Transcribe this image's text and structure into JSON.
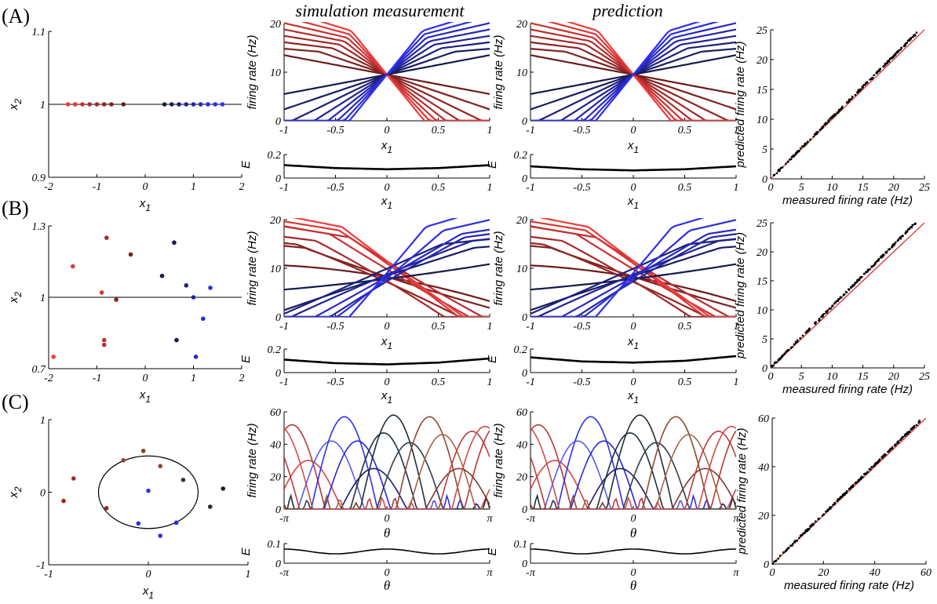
{
  "column_titles": {
    "simulation": "simulation measurement",
    "prediction": "prediction"
  },
  "panel_labels": [
    "(A)",
    "(B)",
    "(C)"
  ],
  "colors": {
    "red": "#ef3b3b",
    "darkred": "#6b1b1b",
    "navy": "#151a4a",
    "blue": "#2f2ff0",
    "identity": "#e41a1c",
    "points": "#000000"
  },
  "chart_data": [
    {
      "row": "A",
      "type": "scatter",
      "role": "neuron-positions",
      "xlabel": "x1",
      "ylabel": "x2",
      "xlim": [
        -2,
        2
      ],
      "ylim": [
        0.9,
        1.1
      ],
      "xticks": [
        "-2",
        "-1",
        "0",
        "1",
        "2"
      ],
      "yticks": [
        "0.9",
        "1",
        "1.1"
      ],
      "reference_line_y": 1,
      "points": [
        {
          "x": -1.6,
          "y": 1,
          "c": 0.0
        },
        {
          "x": -1.45,
          "y": 1,
          "c": 0.14
        },
        {
          "x": -1.3,
          "y": 1,
          "c": 0.28
        },
        {
          "x": -1.15,
          "y": 1,
          "c": 0.42
        },
        {
          "x": -1.0,
          "y": 1,
          "c": 0.57
        },
        {
          "x": -0.85,
          "y": 1,
          "c": 0.71
        },
        {
          "x": -0.7,
          "y": 1,
          "c": 0.85
        },
        {
          "x": -0.45,
          "y": 1,
          "c": 1.0
        },
        {
          "x": 0.4,
          "y": 1,
          "c": 1.0
        },
        {
          "x": 0.55,
          "y": 1,
          "c": 0.85
        },
        {
          "x": 0.7,
          "y": 1,
          "c": 0.71
        },
        {
          "x": 0.85,
          "y": 1,
          "c": 0.57
        },
        {
          "x": 1.0,
          "y": 1,
          "c": 0.42
        },
        {
          "x": 1.15,
          "y": 1,
          "c": 0.28
        },
        {
          "x": 1.3,
          "y": 1,
          "c": 0.14
        },
        {
          "x": 1.45,
          "y": 1,
          "c": 0.07
        },
        {
          "x": 1.6,
          "y": 1,
          "c": 0.0
        }
      ]
    },
    {
      "row": "A",
      "type": "line",
      "role": "tuning-curves",
      "variant": "simulation",
      "xlabel": "x1",
      "ylabel": "firing rate (Hz)",
      "xlim": [
        -1,
        1
      ],
      "ylim": [
        0,
        20
      ],
      "xticks": [
        "-1",
        "-0.5",
        "0",
        "0.5",
        "1"
      ],
      "yticks": [
        "0",
        "10",
        "20"
      ],
      "family": "linear",
      "center": [
        0,
        9.5
      ],
      "n_per_side": 8
    },
    {
      "row": "A",
      "type": "line",
      "role": "energy",
      "variant": "simulation",
      "xlabel": "x1",
      "ylabel": "E",
      "xlim": [
        -1,
        1
      ],
      "ylim": [
        0,
        0.2
      ],
      "xticks": [
        "-1",
        "-0.5",
        "0",
        "0.5",
        "1"
      ],
      "yticks": [
        "0",
        "0.2"
      ],
      "x": [
        -1,
        -0.5,
        0,
        0.5,
        1
      ],
      "y": [
        0.11,
        0.085,
        0.075,
        0.085,
        0.11
      ]
    },
    {
      "row": "A",
      "type": "line",
      "role": "tuning-curves",
      "variant": "prediction",
      "xlabel": "x1",
      "ylabel": "firing rate (Hz)",
      "xlim": [
        -1,
        1
      ],
      "ylim": [
        0,
        20
      ],
      "xticks": [
        "-1",
        "-0.5",
        "0",
        "0.5",
        "1"
      ],
      "yticks": [
        "0",
        "10",
        "20"
      ],
      "family": "linear",
      "center": [
        0,
        9.5
      ],
      "n_per_side": 8
    },
    {
      "row": "A",
      "type": "line",
      "role": "energy",
      "variant": "prediction",
      "xlabel": "x1",
      "ylabel": "E",
      "xlim": [
        -1,
        1
      ],
      "ylim": [
        0,
        0.2
      ],
      "xticks": [
        "-1",
        "-0.5",
        "0",
        "0.5",
        "1"
      ],
      "yticks": [
        "0",
        "0.2"
      ],
      "x": [
        -1,
        -0.5,
        0,
        0.5,
        1
      ],
      "y": [
        0.1,
        0.075,
        0.065,
        0.075,
        0.1
      ]
    },
    {
      "row": "A",
      "type": "scatter",
      "role": "comparison",
      "xlabel": "measured firing rate (Hz)",
      "ylabel": "predicted firing rate (Hz)",
      "xlim": [
        0,
        25
      ],
      "ylim": [
        0,
        25
      ],
      "xticks": [
        "0",
        "5",
        "10",
        "15",
        "20",
        "25"
      ],
      "yticks": [
        "0",
        "5",
        "10",
        "15",
        "20",
        "25"
      ],
      "identity_line": true,
      "slope": 1.03
    },
    {
      "row": "B",
      "type": "scatter",
      "role": "neuron-positions",
      "xlabel": "x1",
      "ylabel": "x2",
      "xlim": [
        -2,
        2
      ],
      "ylim": [
        0.7,
        1.3
      ],
      "xticks": [
        "-2",
        "-1",
        "0",
        "1",
        "2"
      ],
      "yticks": [
        "0.7",
        "1",
        "1.3"
      ],
      "reference_line_y": 1,
      "points": [
        {
          "x": -1.9,
          "y": 0.75,
          "c": 0.0
        },
        {
          "x": -1.5,
          "y": 1.13,
          "c": 0.08
        },
        {
          "x": -0.9,
          "y": 1.02,
          "c": 0.18
        },
        {
          "x": -0.85,
          "y": 0.82,
          "c": 0.3
        },
        {
          "x": -0.85,
          "y": 0.8,
          "c": 0.38
        },
        {
          "x": -0.8,
          "y": 1.25,
          "c": 0.5
        },
        {
          "x": -0.6,
          "y": 0.99,
          "c": 0.72
        },
        {
          "x": -0.3,
          "y": 1.18,
          "c": 0.85
        },
        {
          "x": 0.35,
          "y": 1.09,
          "c": 1.0
        },
        {
          "x": 0.6,
          "y": 1.23,
          "c": 0.95
        },
        {
          "x": 0.65,
          "y": 0.82,
          "c": 0.85
        },
        {
          "x": 0.85,
          "y": 1.05,
          "c": 0.6
        },
        {
          "x": 1.0,
          "y": 1.0,
          "c": 0.55
        },
        {
          "x": 1.05,
          "y": 0.75,
          "c": 0.25
        },
        {
          "x": 1.2,
          "y": 0.91,
          "c": 0.15
        },
        {
          "x": 1.35,
          "y": 1.04,
          "c": 0.05
        }
      ]
    },
    {
      "row": "B",
      "type": "line",
      "role": "tuning-curves",
      "variant": "simulation",
      "xlabel": "x1",
      "ylabel": "firing rate (Hz)",
      "xlim": [
        -1,
        1
      ],
      "ylim": [
        0,
        20
      ],
      "xticks": [
        "-1",
        "-0.5",
        "0",
        "0.5",
        "1"
      ],
      "yticks": [
        "0",
        "10",
        "20"
      ],
      "family": "linear-scattered",
      "center": [
        0,
        9.5
      ],
      "n_per_side": 8
    },
    {
      "row": "B",
      "type": "line",
      "role": "energy",
      "variant": "simulation",
      "xlabel": "x1",
      "ylabel": "E",
      "xlim": [
        -1,
        1
      ],
      "ylim": [
        0,
        0.2
      ],
      "xticks": [
        "-1",
        "-0.5",
        "0",
        "0.5",
        "1"
      ],
      "yticks": [
        "0",
        "0.2"
      ],
      "x": [
        -1,
        -0.5,
        0,
        0.5,
        1
      ],
      "y": [
        0.11,
        0.08,
        0.07,
        0.085,
        0.12
      ]
    },
    {
      "row": "B",
      "type": "line",
      "role": "tuning-curves",
      "variant": "prediction",
      "xlabel": "x1",
      "ylabel": "firing rate (Hz)",
      "xlim": [
        -1,
        1
      ],
      "ylim": [
        0,
        20
      ],
      "xticks": [
        "-1",
        "-0.5",
        "0",
        "0.5",
        "1"
      ],
      "yticks": [
        "0",
        "10",
        "20"
      ],
      "family": "linear-scattered",
      "center": [
        0,
        9.5
      ],
      "n_per_side": 8
    },
    {
      "row": "B",
      "type": "line",
      "role": "energy",
      "variant": "prediction",
      "xlabel": "x1",
      "ylabel": "E",
      "xlim": [
        -1,
        1
      ],
      "ylim": [
        0,
        0.2
      ],
      "xticks": [
        "-1",
        "-0.5",
        "0",
        "0.5",
        "1"
      ],
      "yticks": [
        "0",
        "0.2"
      ],
      "x": [
        -1,
        -0.5,
        0,
        0.5,
        1
      ],
      "y": [
        0.13,
        0.095,
        0.085,
        0.1,
        0.14
      ]
    },
    {
      "row": "B",
      "type": "scatter",
      "role": "comparison",
      "xlabel": "measured firing rate (Hz)",
      "ylabel": "predicted firing rate (Hz)",
      "xlim": [
        0,
        25
      ],
      "ylim": [
        0,
        25
      ],
      "xticks": [
        "0",
        "5",
        "10",
        "15",
        "20",
        "25"
      ],
      "yticks": [
        "0",
        "5",
        "10",
        "15",
        "20",
        "25"
      ],
      "identity_line": true,
      "slope": 1.06
    },
    {
      "row": "C",
      "type": "scatter",
      "role": "neuron-positions",
      "xlabel": "x1",
      "ylabel": "x2",
      "xlim": [
        -1,
        1
      ],
      "ylim": [
        -1,
        1
      ],
      "xticks": [
        "-1",
        "0",
        "1"
      ],
      "yticks": [
        "-1",
        "0",
        "1"
      ],
      "circle": {
        "cx": 0,
        "cy": 0,
        "r": 0.5
      },
      "points": [
        {
          "x": -0.85,
          "y": -0.12,
          "c": 0.05
        },
        {
          "x": -0.75,
          "y": 0.19,
          "c": 0.15
        },
        {
          "x": -0.42,
          "y": -0.22,
          "c": 0.1
        },
        {
          "x": -0.25,
          "y": 0.44,
          "c": 0.35
        },
        {
          "x": -0.05,
          "y": 0.57,
          "c": 0.55
        },
        {
          "x": 0.12,
          "y": 0.36,
          "c": 0.45
        },
        {
          "x": 0.35,
          "y": 0.17,
          "c": 0.8
        },
        {
          "x": 0.62,
          "y": -0.2,
          "c": 0.9
        },
        {
          "x": 0.75,
          "y": 0.05,
          "c": 1.0
        },
        {
          "x": 0.0,
          "y": 0.02,
          "c": 0.0,
          "blue": true
        },
        {
          "x": -0.1,
          "y": -0.43,
          "c": 0.2,
          "blue": true
        },
        {
          "x": 0.12,
          "y": -0.6,
          "c": 0.1,
          "blue": true
        },
        {
          "x": 0.28,
          "y": -0.42,
          "c": 0.4,
          "blue": true
        }
      ]
    },
    {
      "row": "C",
      "type": "line",
      "role": "tuning-curves",
      "variant": "simulation",
      "xlabel": "θ",
      "ylabel": "firing rate (Hz)",
      "xlim": [
        -3.1416,
        3.1416
      ],
      "ylim": [
        0,
        60
      ],
      "xticks": [
        "-π",
        "0",
        "π"
      ],
      "yticks": [
        "0",
        "20",
        "40",
        "60"
      ],
      "family": "bump",
      "bumps": [
        {
          "center": -2.9,
          "amp": 52,
          "col": "#b8363a"
        },
        {
          "center": -2.4,
          "amp": 30,
          "col": "#d24548"
        },
        {
          "center": -1.7,
          "amp": 42,
          "col": "#5a5ae6"
        },
        {
          "center": -1.3,
          "amp": 57,
          "col": "#3030f2"
        },
        {
          "center": -0.9,
          "amp": 42,
          "col": "#2626d8"
        },
        {
          "center": -0.4,
          "amp": 25,
          "col": "#1a1a6e"
        },
        {
          "center": -0.1,
          "amp": 47,
          "col": "#1c3140"
        },
        {
          "center": 0.2,
          "amp": 58,
          "col": "#1e2e3a"
        },
        {
          "center": 0.7,
          "amp": 41,
          "col": "#2c3f4a"
        },
        {
          "center": 1.3,
          "amp": 57,
          "col": "#8a4a34"
        },
        {
          "center": 1.7,
          "amp": 46,
          "col": "#a86448"
        },
        {
          "center": 2.2,
          "amp": 25,
          "col": "#7a3a2e"
        },
        {
          "center": 2.6,
          "amp": 48,
          "col": "#c03a3e"
        },
        {
          "center": 3.0,
          "amp": 51,
          "col": "#d24a4e"
        }
      ]
    },
    {
      "row": "C",
      "type": "line",
      "role": "energy",
      "variant": "simulation",
      "xlabel": "θ",
      "ylabel": "E",
      "xlim": [
        -3.1416,
        3.1416
      ],
      "ylim": [
        0,
        0.1
      ],
      "xticks": [
        "-π",
        "0",
        "π"
      ],
      "yticks": [
        "0",
        "0.1"
      ],
      "wave": {
        "mean": 0.06,
        "amp": 0.012
      }
    },
    {
      "row": "C",
      "type": "line",
      "role": "tuning-curves",
      "variant": "prediction",
      "xlabel": "θ",
      "ylabel": "firing rate (Hz)",
      "xlim": [
        -3.1416,
        3.1416
      ],
      "ylim": [
        0,
        60
      ],
      "xticks": [
        "-π",
        "0",
        "π"
      ],
      "yticks": [
        "0",
        "20",
        "40",
        "60"
      ],
      "family": "bump",
      "bumps": [
        {
          "center": -2.9,
          "amp": 52,
          "col": "#b8363a"
        },
        {
          "center": -2.4,
          "amp": 30,
          "col": "#d24548"
        },
        {
          "center": -1.7,
          "amp": 42,
          "col": "#5a5ae6"
        },
        {
          "center": -1.3,
          "amp": 57,
          "col": "#3030f2"
        },
        {
          "center": -0.9,
          "amp": 42,
          "col": "#2626d8"
        },
        {
          "center": -0.4,
          "amp": 25,
          "col": "#1a1a6e"
        },
        {
          "center": -0.1,
          "amp": 47,
          "col": "#1c3140"
        },
        {
          "center": 0.2,
          "amp": 58,
          "col": "#1e2e3a"
        },
        {
          "center": 0.7,
          "amp": 41,
          "col": "#2c3f4a"
        },
        {
          "center": 1.3,
          "amp": 57,
          "col": "#8a4a34"
        },
        {
          "center": 1.7,
          "amp": 46,
          "col": "#a86448"
        },
        {
          "center": 2.2,
          "amp": 25,
          "col": "#7a3a2e"
        },
        {
          "center": 2.6,
          "amp": 48,
          "col": "#c03a3e"
        },
        {
          "center": 3.0,
          "amp": 51,
          "col": "#d24a4e"
        }
      ]
    },
    {
      "row": "C",
      "type": "line",
      "role": "energy",
      "variant": "prediction",
      "xlabel": "θ",
      "ylabel": "E",
      "xlim": [
        -3.1416,
        3.1416
      ],
      "ylim": [
        0,
        0.1
      ],
      "xticks": [
        "-π",
        "0",
        "π"
      ],
      "yticks": [
        "0",
        "0.1"
      ],
      "wave": {
        "mean": 0.06,
        "amp": 0.012
      }
    },
    {
      "row": "C",
      "type": "scatter",
      "role": "comparison",
      "xlabel": "measured firing rate (Hz)",
      "ylabel": "predicted firing rate (Hz)",
      "xlim": [
        0,
        60
      ],
      "ylim": [
        0,
        60
      ],
      "xticks": [
        "0",
        "20",
        "40",
        "60"
      ],
      "yticks": [
        "0",
        "20",
        "40",
        "60"
      ],
      "identity_line": true,
      "slope": 1.02
    }
  ]
}
